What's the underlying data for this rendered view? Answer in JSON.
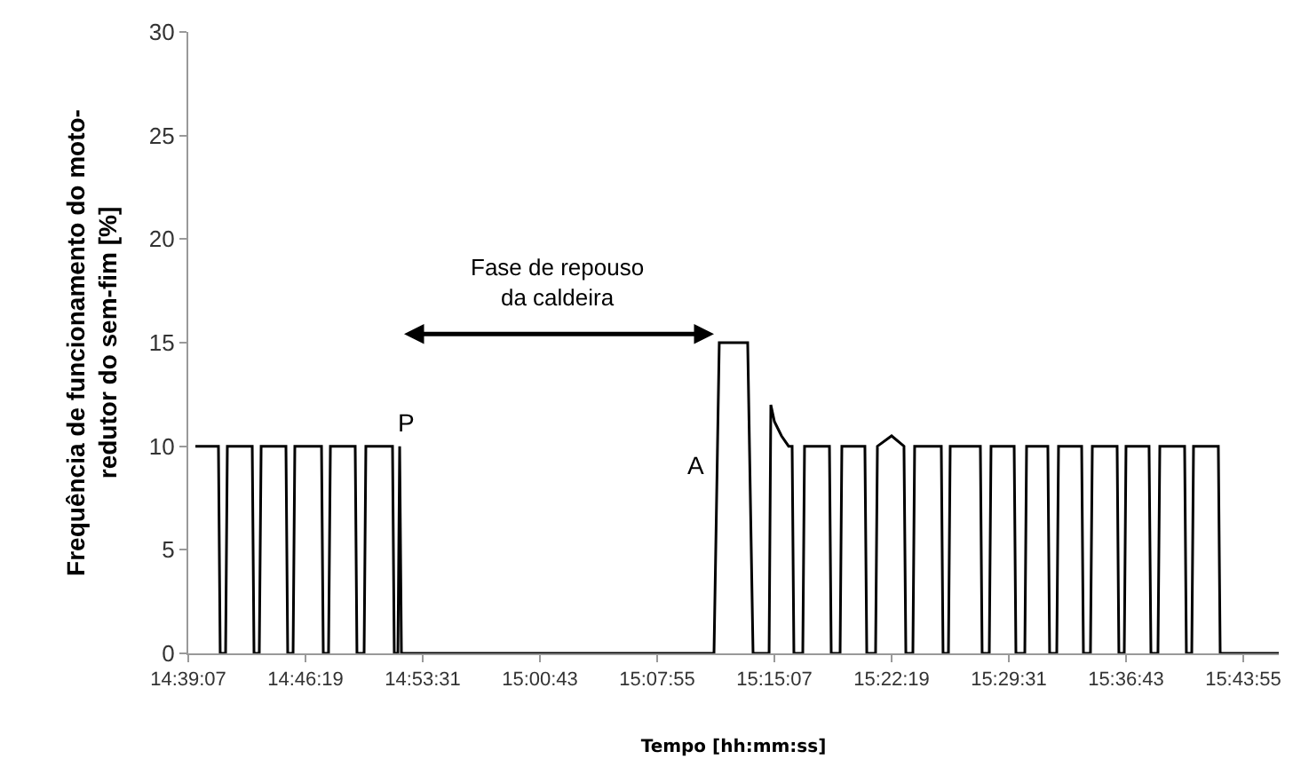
{
  "chart_data": {
    "type": "line",
    "xlabel": "Tempo [hh:mm:ss]",
    "ylabel": "Frequência de funcionamento do moto-\nredutor do sem-fim [%]",
    "x": [
      14.6592,
      14.6828,
      14.6846,
      14.6901,
      14.6919,
      14.7174,
      14.7192,
      14.7246,
      14.7265,
      14.7519,
      14.7537,
      14.7592,
      14.761,
      14.7883,
      14.7901,
      14.7955,
      14.7974,
      14.8228,
      14.8246,
      14.8319,
      14.8337,
      14.861,
      14.8628,
      14.8665,
      14.8683,
      14.8701,
      15.1901,
      15.1955,
      15.2246,
      15.2301,
      15.2465,
      15.2483,
      15.2519,
      15.2592,
      15.2665,
      15.2701,
      15.2719,
      15.281,
      15.2828,
      15.3083,
      15.3101,
      15.3192,
      15.321,
      15.3446,
      15.3465,
      15.3555,
      15.3574,
      15.3719,
      15.3846,
      15.3865,
      15.3937,
      15.3955,
      15.4228,
      15.4246,
      15.4301,
      15.4319,
      15.4628,
      15.4646,
      15.4719,
      15.4737,
      15.4974,
      15.4992,
      15.5083,
      15.5101,
      15.5319,
      15.5337,
      15.541,
      15.5428,
      15.5665,
      15.5683,
      15.5755,
      15.5774,
      15.6028,
      15.6046,
      15.6101,
      15.6119,
      15.6355,
      15.6374,
      15.6446,
      15.6465,
      15.6719,
      15.6737,
      15.6792,
      15.681,
      15.7064,
      15.7083,
      15.7683
    ],
    "series": [
      {
        "color": "#000000",
        "values": [
          10,
          10,
          0,
          0,
          10,
          10,
          0,
          0,
          10,
          10,
          0,
          0,
          10,
          10,
          0,
          0,
          10,
          10,
          0,
          0,
          10,
          10,
          0,
          0,
          10,
          0,
          0,
          15,
          15,
          0,
          0,
          12,
          11.2,
          10.5,
          10,
          10,
          0,
          0,
          10,
          10,
          0,
          0,
          10,
          10,
          0,
          0,
          10,
          10.5,
          10,
          0,
          0,
          10,
          10,
          0,
          0,
          10,
          10,
          0,
          0,
          10,
          10,
          0,
          0,
          10,
          10,
          0,
          0,
          10,
          10,
          0,
          0,
          10,
          10,
          0,
          0,
          10,
          10,
          0,
          0,
          10,
          10,
          0,
          0,
          10,
          10,
          0,
          0
        ]
      }
    ],
    "xlim": [
      14.6519,
      15.7683
    ],
    "xticks": [
      {
        "value": 14.6519,
        "label": "14:39:07"
      },
      {
        "value": 14.7719,
        "label": "14:46:19"
      },
      {
        "value": 14.8919,
        "label": "14:53:31"
      },
      {
        "value": 15.0119,
        "label": "15:00:43"
      },
      {
        "value": 15.1319,
        "label": "15:07:55"
      },
      {
        "value": 15.2519,
        "label": "15:15:07"
      },
      {
        "value": 15.3719,
        "label": "15:22:19"
      },
      {
        "value": 15.4919,
        "label": "15:29:31"
      },
      {
        "value": 15.6119,
        "label": "15:36:43"
      },
      {
        "value": 15.7319,
        "label": "15:43:55"
      }
    ],
    "ylim": [
      0,
      30
    ],
    "yticks": [
      0,
      5,
      10,
      15,
      20,
      25,
      30
    ],
    "grid": false,
    "annotations": [
      {
        "text": "P",
        "x": 14.8701,
        "y": 10
      },
      {
        "text": "A",
        "x": 15.1901,
        "y": 10
      },
      "Fase de repouso\nda caldeira"
    ]
  }
}
